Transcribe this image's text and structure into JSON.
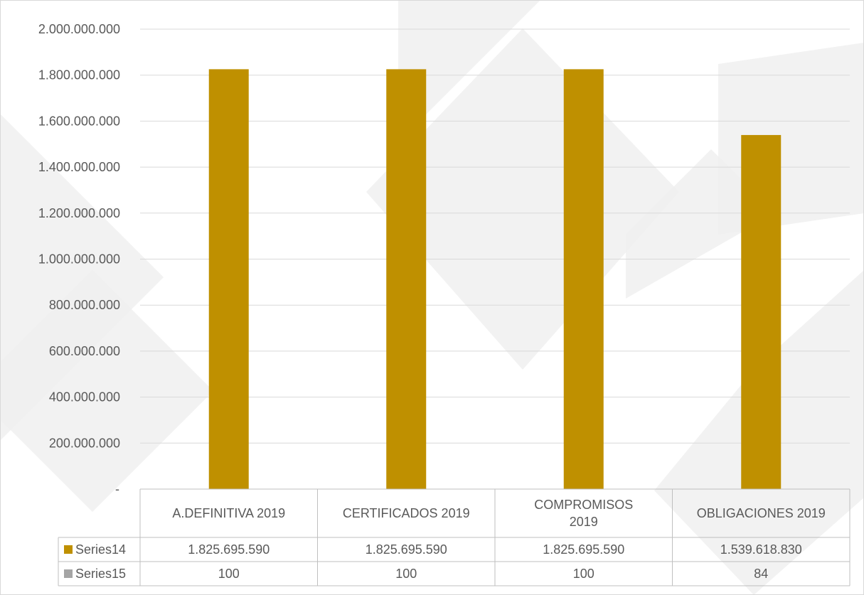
{
  "chart_data": {
    "type": "bar",
    "categories": [
      [
        "A.DEFINITIVA 2019"
      ],
      [
        "CERTIFICADOS 2019"
      ],
      [
        "COMPROMISOS",
        "2019"
      ],
      [
        "OBLIGACIONES 2019"
      ]
    ],
    "series": [
      {
        "name": "Series14",
        "values": [
          1825695590,
          1825695590,
          1825695590,
          1539618830
        ],
        "value_labels": [
          "1.825.695.590",
          "1.825.695.590",
          "1.825.695.590",
          "1.539.618.830"
        ],
        "color": "#BF9000",
        "plotted": true
      },
      {
        "name": "Series15",
        "values": [
          100,
          100,
          100,
          84
        ],
        "value_labels": [
          "100",
          "100",
          "100",
          "84"
        ],
        "color": "#A5A5A5",
        "plotted": false
      }
    ],
    "y_ticks": [
      {
        "value": 0,
        "label": "-"
      },
      {
        "value": 200000000,
        "label": "200.000.000"
      },
      {
        "value": 400000000,
        "label": "400.000.000"
      },
      {
        "value": 600000000,
        "label": "600.000.000"
      },
      {
        "value": 800000000,
        "label": "800.000.000"
      },
      {
        "value": 1000000000,
        "label": "1.000.000.000"
      },
      {
        "value": 1200000000,
        "label": "1.200.000.000"
      },
      {
        "value": 1400000000,
        "label": "1.400.000.000"
      },
      {
        "value": 1600000000,
        "label": "1.600.000.000"
      },
      {
        "value": 1800000000,
        "label": "1.800.000.000"
      },
      {
        "value": 2000000000,
        "label": "2.000.000.000"
      }
    ],
    "ylim": [
      0,
      2000000000
    ],
    "grid": true,
    "legend": "data-table",
    "title": "",
    "xlabel": "",
    "ylabel": ""
  },
  "colors": {
    "grid": "#D9D9D9",
    "table_border": "#BFBFBF",
    "text": "#595959",
    "frame": "#D9D9D9",
    "background_shape": "#F0F0F0"
  }
}
